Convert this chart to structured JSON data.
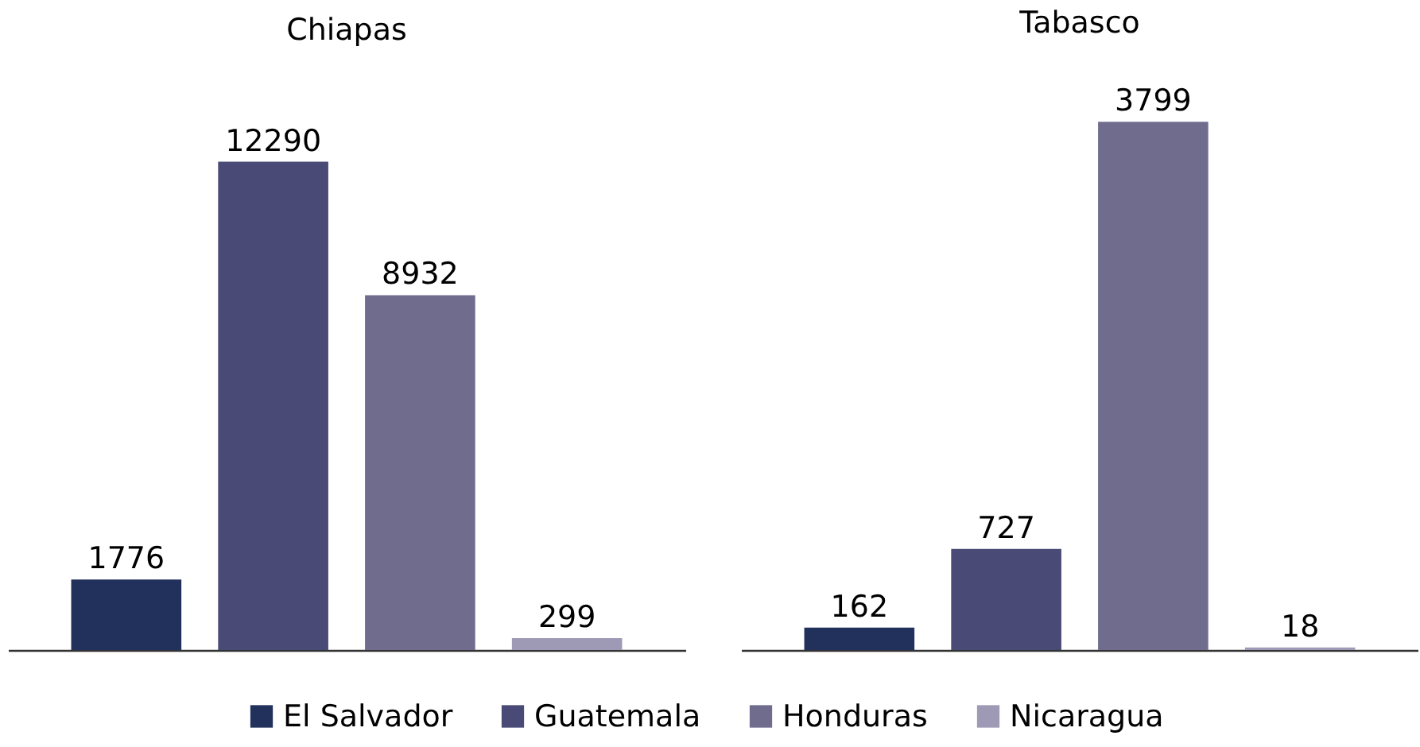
{
  "chart_data": [
    {
      "type": "bar",
      "title": "Chiapas",
      "categories": [
        null
      ],
      "series": [
        {
          "name": "El Salvador",
          "color": "#22305c",
          "values": [
            1776
          ]
        },
        {
          "name": "Guatemala",
          "color": "#494a75",
          "values": [
            12290
          ]
        },
        {
          "name": "Honduras",
          "color": "#706c8e",
          "values": [
            8932
          ]
        },
        {
          "name": "Nicaragua",
          "color": "#9e9ab5",
          "values": [
            299
          ]
        }
      ],
      "data_labels": true,
      "legend": "bottom",
      "tick_labels": false
    },
    {
      "type": "bar",
      "title": "Tabasco",
      "categories": [
        null
      ],
      "series": [
        {
          "name": "El Salvador",
          "color": "#22305c",
          "values": [
            162
          ]
        },
        {
          "name": "Guatemala",
          "color": "#494a75",
          "values": [
            727
          ]
        },
        {
          "name": "Honduras",
          "color": "#706c8e",
          "values": [
            3799
          ]
        },
        {
          "name": "Nicaragua",
          "color": "#9e9ab5",
          "values": [
            18
          ]
        }
      ],
      "data_labels": true,
      "legend": "bottom",
      "tick_labels": false
    }
  ]
}
